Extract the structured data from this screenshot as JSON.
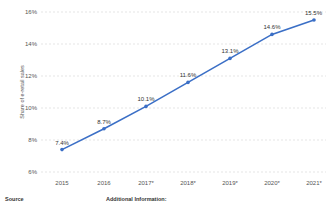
{
  "chart_data": {
    "type": "line",
    "y_label": "Share of e-retail sales",
    "categories": [
      "2015",
      "2016",
      "2017*",
      "2018*",
      "2019*",
      "2020*",
      "2021*"
    ],
    "values": [
      7.4,
      8.7,
      10.1,
      11.6,
      13.1,
      14.6,
      15.5
    ],
    "value_labels": [
      "7.4%",
      "8.7%",
      "10.1%",
      "11.6%",
      "13.1%",
      "14.6%",
      "15.5%"
    ],
    "color": "#3b6fc6",
    "marker": "circle",
    "ylim": [
      6,
      16
    ],
    "yticks": [
      {
        "value": 6,
        "label": "6%"
      },
      {
        "value": 8,
        "label": "8%"
      },
      {
        "value": 10,
        "label": "10%"
      },
      {
        "value": 12,
        "label": "12%"
      },
      {
        "value": 14,
        "label": "14%"
      },
      {
        "value": 16,
        "label": "16%"
      }
    ],
    "grid": true,
    "data_labels": true,
    "source": "Source",
    "additional_information": "Additional Information:"
  }
}
